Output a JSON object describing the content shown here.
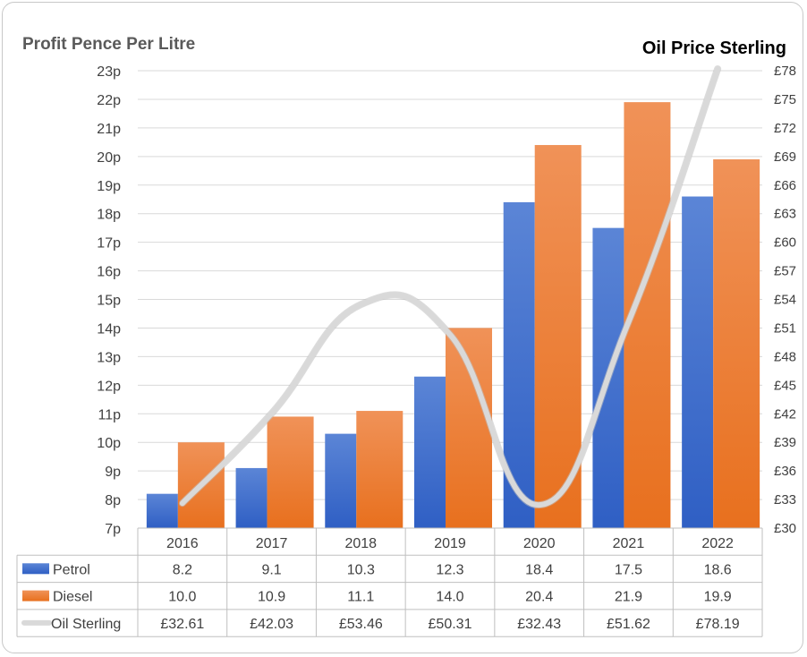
{
  "chart_data": {
    "type": "bar",
    "title_left": "Profit Pence Per Litre",
    "title_right": "Oil Price Sterling",
    "categories": [
      "2016",
      "2017",
      "2018",
      "2019",
      "2020",
      "2021",
      "2022"
    ],
    "series": [
      {
        "name": "Petrol",
        "axis": "left",
        "color": "#3f6fd0",
        "values": [
          8.2,
          9.1,
          10.3,
          12.3,
          18.4,
          17.5,
          18.6
        ],
        "labels": [
          "8.2",
          "9.1",
          "10.3",
          "12.3",
          "18.4",
          "17.5",
          "18.6"
        ]
      },
      {
        "name": "Diesel",
        "axis": "left",
        "color": "#ee7d31",
        "values": [
          10.0,
          10.9,
          11.1,
          14.0,
          20.4,
          21.9,
          19.9
        ],
        "labels": [
          "10.0",
          "10.9",
          "11.1",
          "14.0",
          "20.4",
          "21.9",
          "19.9"
        ]
      },
      {
        "name": "Oil Sterling",
        "axis": "right",
        "type": "line",
        "color": "#d9d9d9",
        "values": [
          32.61,
          42.03,
          53.46,
          50.31,
          32.43,
          51.62,
          78.19
        ],
        "labels": [
          "£32.61",
          "£42.03",
          "£53.46",
          "£50.31",
          "£32.43",
          "£51.62",
          "£78.19"
        ]
      }
    ],
    "y_left": {
      "min": 7,
      "max": 23,
      "step": 1,
      "suffix": "p"
    },
    "y_right": {
      "min": 30,
      "max": 78,
      "step": 3,
      "prefix": "£"
    },
    "grid": true,
    "data_table": true
  }
}
